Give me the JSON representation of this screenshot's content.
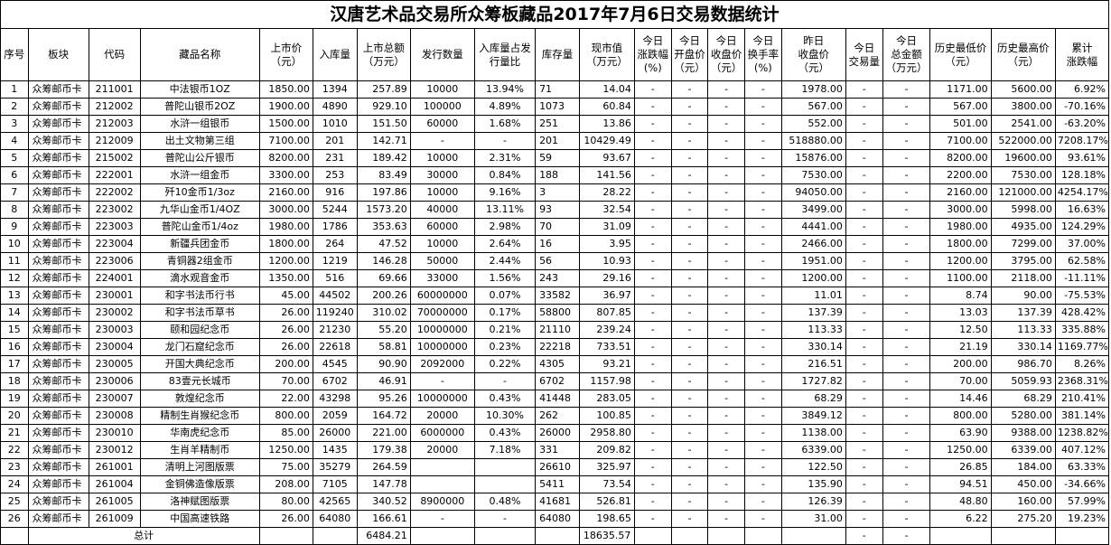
{
  "title": "汉唐艺术品交易所众筹板藏品2017年7月6日交易数据统计",
  "headers": [
    "序号",
    "板块",
    "代码",
    "藏品名称",
    "上市价\n（元）",
    "入库量",
    "上市总额\n（万元）",
    "发行数量",
    "入库量占发\n行量比",
    "库存量",
    "现市值\n（万元）",
    "今日\n涨跌幅\n(%)",
    "今日\n开盘价\n（元）",
    "今日\n收盘价\n（元）",
    "今日\n换手率\n(%)",
    "昨日\n收盘价\n（元）",
    "今日\n交易量",
    "今日\n总金额\n（万元）",
    "历史最低价\n（元）",
    "历史最高价\n（元）",
    "累计\n涨跌幅"
  ],
  "rows": [
    [
      "1",
      "众筹邮币卡",
      "211001",
      "中法银币1OZ",
      "1850.00",
      "1394",
      "257.89",
      "10000",
      "13.94%",
      "71",
      "14.04",
      "-",
      "-",
      "-",
      "-",
      "1978.00",
      "-",
      "-",
      "1171.00",
      "5600.00",
      "6.92%"
    ],
    [
      "2",
      "众筹邮币卡",
      "212002",
      "普陀山银币2OZ",
      "1900.00",
      "4890",
      "929.10",
      "100000",
      "4.89%",
      "1073",
      "60.84",
      "-",
      "-",
      "-",
      "-",
      "567.00",
      "-",
      "-",
      "567.00",
      "3800.00",
      "-70.16%"
    ],
    [
      "3",
      "众筹邮币卡",
      "212003",
      "水浒一组银币",
      "1500.00",
      "1010",
      "151.50",
      "60000",
      "1.68%",
      "251",
      "13.86",
      "-",
      "-",
      "-",
      "-",
      "552.00",
      "-",
      "-",
      "501.00",
      "2541.00",
      "-63.20%"
    ],
    [
      "4",
      "众筹邮币卡",
      "212009",
      "出土文物第三组",
      "7100.00",
      "201",
      "142.71",
      "-",
      "-",
      "201",
      "10429.49",
      "-",
      "-",
      "-",
      "-",
      "518880.00",
      "-",
      "-",
      "7100.00",
      "522000.00",
      "7208.17%"
    ],
    [
      "5",
      "众筹邮币卡",
      "215002",
      "普陀山公斤银币",
      "8200.00",
      "231",
      "189.42",
      "10000",
      "2.31%",
      "59",
      "93.67",
      "-",
      "-",
      "-",
      "-",
      "15876.00",
      "-",
      "-",
      "8200.00",
      "19600.00",
      "93.61%"
    ],
    [
      "6",
      "众筹邮币卡",
      "222001",
      "水浒一组金币",
      "3300.00",
      "253",
      "83.49",
      "30000",
      "0.84%",
      "188",
      "141.56",
      "-",
      "-",
      "-",
      "-",
      "7530.00",
      "-",
      "-",
      "2200.00",
      "7530.00",
      "128.18%"
    ],
    [
      "7",
      "众筹邮币卡",
      "222002",
      "歼10金币1/3oz",
      "2160.00",
      "916",
      "197.86",
      "10000",
      "9.16%",
      "3",
      "28.22",
      "-",
      "-",
      "-",
      "-",
      "94050.00",
      "-",
      "-",
      "2160.00",
      "121000.00",
      "4254.17%"
    ],
    [
      "8",
      "众筹邮币卡",
      "223002",
      "九华山金币1/4OZ",
      "3000.00",
      "5244",
      "1573.20",
      "40000",
      "13.11%",
      "93",
      "32.54",
      "-",
      "-",
      "-",
      "-",
      "3499.00",
      "-",
      "-",
      "3000.00",
      "5998.00",
      "16.63%"
    ],
    [
      "9",
      "众筹邮币卡",
      "223003",
      "普陀山金币1/4oz",
      "1980.00",
      "1786",
      "353.63",
      "60000",
      "2.98%",
      "70",
      "31.09",
      "-",
      "-",
      "-",
      "-",
      "4441.00",
      "-",
      "-",
      "1980.00",
      "4935.00",
      "124.29%"
    ],
    [
      "10",
      "众筹邮币卡",
      "223004",
      "新疆兵团金币",
      "1800.00",
      "264",
      "47.52",
      "10000",
      "2.64%",
      "16",
      "3.95",
      "-",
      "-",
      "-",
      "-",
      "2466.00",
      "-",
      "-",
      "1800.00",
      "7299.00",
      "37.00%"
    ],
    [
      "11",
      "众筹邮币卡",
      "223006",
      "青铜器2组金币",
      "1200.00",
      "1219",
      "146.28",
      "50000",
      "2.44%",
      "56",
      "10.93",
      "-",
      "-",
      "-",
      "-",
      "1951.00",
      "-",
      "-",
      "1200.00",
      "3795.00",
      "62.58%"
    ],
    [
      "12",
      "众筹邮币卡",
      "224001",
      "滴水观音金币",
      "1350.00",
      "516",
      "69.66",
      "33000",
      "1.56%",
      "243",
      "29.16",
      "-",
      "-",
      "-",
      "-",
      "1200.00",
      "-",
      "-",
      "1100.00",
      "2118.00",
      "-11.11%"
    ],
    [
      "13",
      "众筹邮币卡",
      "230001",
      "和字书法币行书",
      "45.00",
      "44502",
      "200.26",
      "60000000",
      "0.07%",
      "33582",
      "36.97",
      "-",
      "-",
      "-",
      "-",
      "11.01",
      "-",
      "-",
      "8.74",
      "90.00",
      "-75.53%"
    ],
    [
      "14",
      "众筹邮币卡",
      "230002",
      "和字书法币草书",
      "26.00",
      "119240",
      "310.02",
      "70000000",
      "0.17%",
      "58800",
      "807.85",
      "-",
      "-",
      "-",
      "-",
      "137.39",
      "-",
      "-",
      "13.03",
      "137.39",
      "428.42%"
    ],
    [
      "15",
      "众筹邮币卡",
      "230003",
      "颐和园纪念币",
      "26.00",
      "21230",
      "55.20",
      "10000000",
      "0.21%",
      "21110",
      "239.24",
      "-",
      "-",
      "-",
      "-",
      "113.33",
      "-",
      "-",
      "12.50",
      "113.33",
      "335.88%"
    ],
    [
      "16",
      "众筹邮币卡",
      "230004",
      "龙门石窟纪念币",
      "26.00",
      "22618",
      "58.81",
      "10000000",
      "0.23%",
      "22218",
      "733.51",
      "-",
      "-",
      "-",
      "-",
      "330.14",
      "-",
      "-",
      "21.19",
      "330.14",
      "1169.77%"
    ],
    [
      "17",
      "众筹邮币卡",
      "230005",
      "开国大典纪念币",
      "200.00",
      "4545",
      "90.90",
      "2092000",
      "0.22%",
      "4305",
      "93.21",
      "-",
      "-",
      "-",
      "-",
      "216.51",
      "-",
      "-",
      "200.00",
      "986.70",
      "8.26%"
    ],
    [
      "18",
      "众筹邮币卡",
      "230006",
      "83壹元长城币",
      "70.00",
      "6702",
      "46.91",
      "-",
      "-",
      "6702",
      "1157.98",
      "-",
      "-",
      "-",
      "-",
      "1727.82",
      "-",
      "-",
      "70.00",
      "5059.93",
      "2368.31%"
    ],
    [
      "19",
      "众筹邮币卡",
      "230007",
      "敦煌纪念币",
      "22.00",
      "43298",
      "95.26",
      "10000000",
      "0.43%",
      "41448",
      "283.05",
      "-",
      "-",
      "-",
      "-",
      "68.29",
      "-",
      "-",
      "14.46",
      "68.29",
      "210.41%"
    ],
    [
      "20",
      "众筹邮币卡",
      "230008",
      "精制生肖猴纪念币",
      "800.00",
      "2059",
      "164.72",
      "20000",
      "10.30%",
      "262",
      "100.85",
      "-",
      "-",
      "-",
      "-",
      "3849.12",
      "-",
      "-",
      "800.00",
      "5280.00",
      "381.14%"
    ],
    [
      "21",
      "众筹邮币卡",
      "230010",
      "华南虎纪念币",
      "85.00",
      "26000",
      "221.00",
      "6000000",
      "0.43%",
      "26000",
      "2958.80",
      "-",
      "-",
      "-",
      "-",
      "1138.00",
      "-",
      "-",
      "63.90",
      "9388.00",
      "1238.82%"
    ],
    [
      "22",
      "众筹邮币卡",
      "230012",
      "生肖羊精制币",
      "1250.00",
      "1435",
      "179.38",
      "20000",
      "7.18%",
      "331",
      "209.82",
      "-",
      "-",
      "-",
      "-",
      "6339.00",
      "-",
      "-",
      "1250.00",
      "6339.00",
      "407.12%"
    ],
    [
      "23",
      "众筹邮币卡",
      "261001",
      "清明上河图版票",
      "75.00",
      "35279",
      "264.59",
      "",
      "",
      "26610",
      "325.97",
      "-",
      "-",
      "-",
      "-",
      "122.50",
      "-",
      "-",
      "26.85",
      "184.00",
      "63.33%"
    ],
    [
      "24",
      "众筹邮币卡",
      "261004",
      "金铜佛造像版票",
      "208.00",
      "7105",
      "147.78",
      "",
      "",
      "5411",
      "73.54",
      "-",
      "-",
      "-",
      "-",
      "135.90",
      "-",
      "-",
      "94.51",
      "450.00",
      "-34.66%"
    ],
    [
      "25",
      "众筹邮币卡",
      "261005",
      "洛神赋图版票",
      "80.00",
      "42565",
      "340.52",
      "8900000",
      "0.48%",
      "41681",
      "526.81",
      "-",
      "-",
      "-",
      "-",
      "126.39",
      "-",
      "-",
      "48.80",
      "160.00",
      "57.99%"
    ],
    [
      "26",
      "众筹邮币卡",
      "261009",
      "中国高速铁路",
      "26.00",
      "64080",
      "166.61",
      "-",
      "-",
      "64080",
      "198.65",
      "-",
      "-",
      "-",
      "-",
      "31.00",
      "-",
      "-",
      "6.22",
      "275.20",
      "19.23%"
    ]
  ],
  "total": {
    "label": "总计",
    "listing_total": "6484.21",
    "market_value": "18635.57",
    "volume": "-",
    "amount": "-"
  }
}
